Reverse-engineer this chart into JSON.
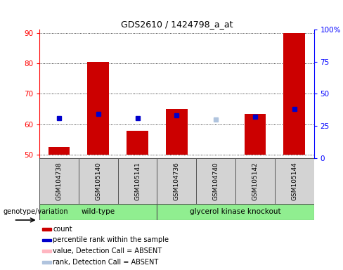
{
  "title": "GDS2610 / 1424798_a_at",
  "samples": [
    "GSM104738",
    "GSM105140",
    "GSM105141",
    "GSM104736",
    "GSM104740",
    "GSM105142",
    "GSM105144"
  ],
  "ylim_left": [
    49,
    91
  ],
  "ylim_right": [
    0,
    100
  ],
  "yticks_left": [
    50,
    60,
    70,
    80,
    90
  ],
  "yticks_right": [
    0,
    25,
    50,
    75,
    100
  ],
  "ytick_labels_right": [
    "0",
    "25",
    "50",
    "75",
    "100%"
  ],
  "bar_values": {
    "GSM104738": 52.5,
    "GSM105140": 80.5,
    "GSM105141": 58.0,
    "GSM104736": 65.0,
    "GSM104740": 50.0,
    "GSM105142": 63.5,
    "GSM105144": 90.0
  },
  "rank_values": {
    "GSM104738": 62.0,
    "GSM105140": 63.5,
    "GSM105141": 62.0,
    "GSM104736": 63.0,
    "GSM104740": 61.5,
    "GSM105142": 62.5,
    "GSM105144": 65.0
  },
  "absent_samples": [
    "GSM104740"
  ],
  "bar_color": "#CC0000",
  "rank_color": "#0000CC",
  "absent_bar_color": "#FFB6C1",
  "absent_rank_color": "#B0C4DE",
  "wt_samples_count": 3,
  "gk_samples_count": 4,
  "group_color": "#90EE90",
  "sample_box_color": "#d3d3d3",
  "legend_items": [
    {
      "label": "count",
      "color": "#CC0000"
    },
    {
      "label": "percentile rank within the sample",
      "color": "#0000CC"
    },
    {
      "label": "value, Detection Call = ABSENT",
      "color": "#FFB6C1"
    },
    {
      "label": "rank, Detection Call = ABSENT",
      "color": "#B0C4DE"
    }
  ]
}
